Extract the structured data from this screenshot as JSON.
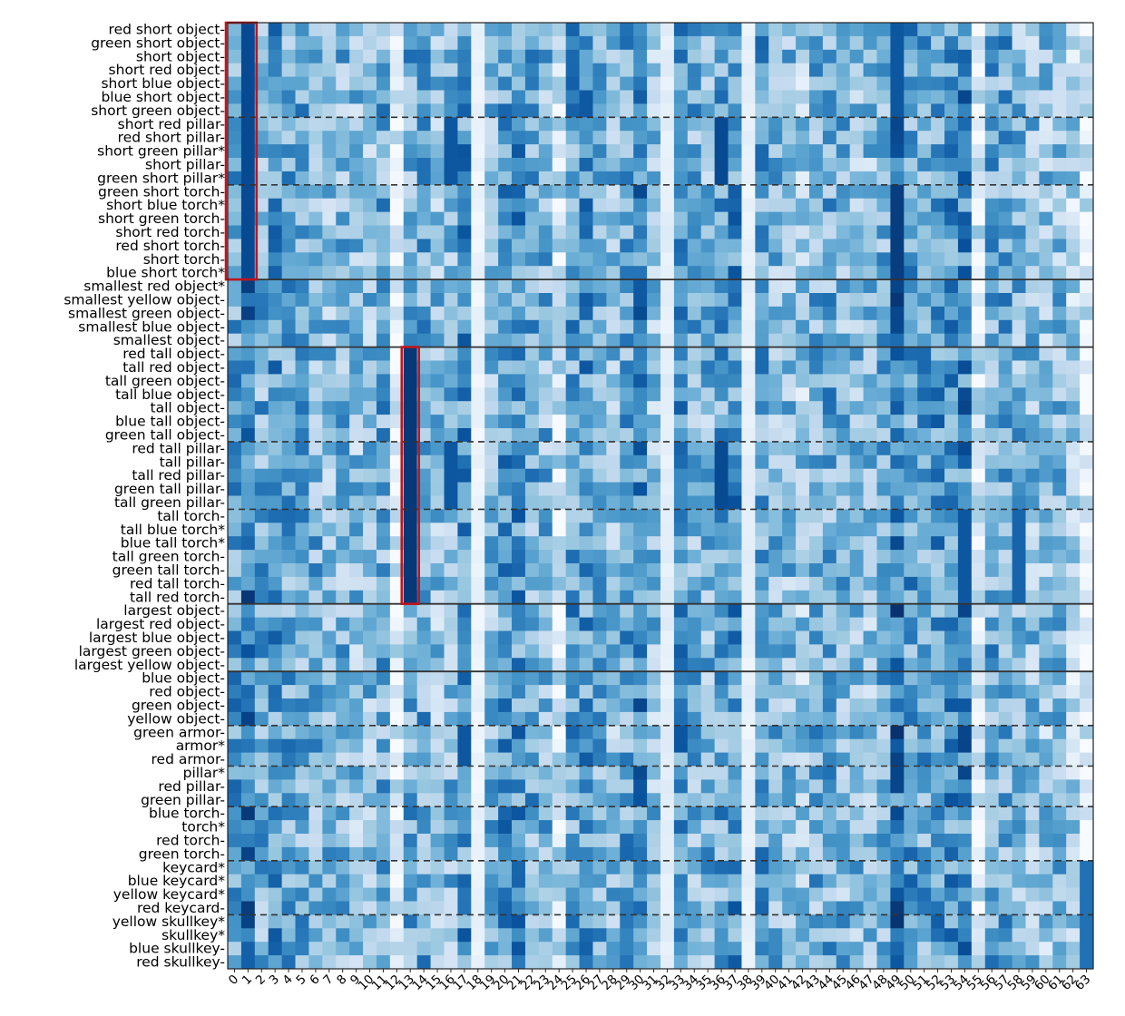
{
  "chart_data": {
    "type": "heatmap",
    "colormap": "Blues",
    "value_range": [
      0,
      1
    ],
    "rows": [
      "red short object-",
      "green short object-",
      "short object-",
      "short red object-",
      "short blue object-",
      "blue short object-",
      "short green object-",
      "short red pillar-",
      "red short pillar-",
      "short green pillar*",
      "short pillar-",
      "green short pillar*",
      "green short torch-",
      "short blue torch*",
      "short green torch-",
      "short red torch-",
      "red short torch-",
      "short torch-",
      "blue short torch*",
      "smallest red object*",
      "smallest yellow object-",
      "smallest green object-",
      "smallest blue object-",
      "smallest object-",
      "red tall object-",
      "tall red object-",
      "tall green object-",
      "tall blue object-",
      "tall object-",
      "blue tall object-",
      "green tall object-",
      "red tall pillar-",
      "tall pillar-",
      "tall red pillar-",
      "green tall pillar-",
      "tall green pillar-",
      "tall torch-",
      "tall blue torch*",
      "blue tall torch*",
      "tall green torch-",
      "green tall torch-",
      "red tall torch-",
      "tall red torch-",
      "largest object-",
      "largest red object-",
      "largest blue object-",
      "largest green object-",
      "largest yellow object-",
      "blue object-",
      "red object-",
      "green object-",
      "yellow object-",
      "green armor-",
      "armor*",
      "red armor-",
      "pillar*",
      "red pillar-",
      "green pillar-",
      "blue torch-",
      "torch*",
      "red torch-",
      "green torch-",
      "keycard*",
      "blue keycard*",
      "yellow keycard*",
      "red keycard-",
      "yellow skullkey*",
      "skullkey*",
      "blue skullkey-",
      "red skullkey-"
    ],
    "columns": [
      "0",
      "1",
      "2",
      "3",
      "4",
      "5",
      "6",
      "7",
      "8",
      "9",
      "10",
      "11",
      "12",
      "13",
      "14",
      "15",
      "16",
      "17",
      "18",
      "19",
      "20",
      "21",
      "22",
      "23",
      "24",
      "25",
      "26",
      "27",
      "28",
      "29",
      "30",
      "31",
      "32",
      "33",
      "34",
      "35",
      "36",
      "37",
      "38",
      "39",
      "40",
      "41",
      "42",
      "43",
      "44",
      "45",
      "46",
      "47",
      "48",
      "49",
      "50",
      "51",
      "52",
      "53",
      "54",
      "55",
      "56",
      "57",
      "58",
      "59",
      "60",
      "61",
      "62",
      "63"
    ],
    "column_strength": [
      0.55,
      0.7,
      0.5,
      0.58,
      0.52,
      0.5,
      0.47,
      0.43,
      0.45,
      0.4,
      0.42,
      0.5,
      0.12,
      0.5,
      0.52,
      0.4,
      0.45,
      0.6,
      0.02,
      0.45,
      0.58,
      0.6,
      0.5,
      0.45,
      0.2,
      0.55,
      0.58,
      0.5,
      0.42,
      0.52,
      0.65,
      0.4,
      0.06,
      0.6,
      0.48,
      0.45,
      0.55,
      0.6,
      0.04,
      0.55,
      0.45,
      0.42,
      0.35,
      0.48,
      0.5,
      0.45,
      0.42,
      0.4,
      0.5,
      0.72,
      0.55,
      0.52,
      0.58,
      0.6,
      0.65,
      0.15,
      0.5,
      0.52,
      0.45,
      0.4,
      0.38,
      0.42,
      0.3,
      0.12
    ],
    "highlights": [
      {
        "rows": [
          0,
          18
        ],
        "columns": [
          0,
          1
        ]
      },
      {
        "rows": [
          24,
          42
        ],
        "columns": [
          13,
          13
        ]
      }
    ],
    "strong_cells": [
      {
        "rows": [
          0,
          18
        ],
        "columns": [
          1
        ],
        "value": 0.9
      },
      {
        "rows": [
          24,
          42
        ],
        "columns": [
          13
        ],
        "value": 0.97
      },
      {
        "rows": [
          12,
          18
        ],
        "columns": [
          49
        ],
        "value": 0.95
      },
      {
        "rows": [
          31,
          35
        ],
        "columns": [
          36
        ],
        "value": 0.9
      },
      {
        "rows": [
          7,
          11
        ],
        "columns": [
          36
        ],
        "value": 0.9
      },
      {
        "rows": [
          7,
          11
        ],
        "columns": [
          16
        ],
        "value": 0.85
      },
      {
        "rows": [
          31,
          35
        ],
        "columns": [
          16
        ],
        "value": 0.85
      },
      {
        "rows": [
          36,
          42
        ],
        "columns": [
          54
        ],
        "value": 0.85
      },
      {
        "rows": [
          36,
          42
        ],
        "columns": [
          58
        ],
        "value": 0.8
      },
      {
        "rows": [
          0,
          6
        ],
        "columns": [
          49
        ],
        "value": 0.85
      },
      {
        "rows": [
          52,
          54
        ],
        "columns": [
          17
        ],
        "value": 0.85
      },
      {
        "rows": [
          62,
          69
        ],
        "columns": [
          63
        ],
        "value": 0.75
      }
    ],
    "major_group_boundaries_after_row": [
      18,
      23,
      42,
      47
    ],
    "minor_group_boundaries_after_row": [
      6,
      11,
      30,
      35,
      51,
      54,
      57,
      61,
      65
    ]
  }
}
